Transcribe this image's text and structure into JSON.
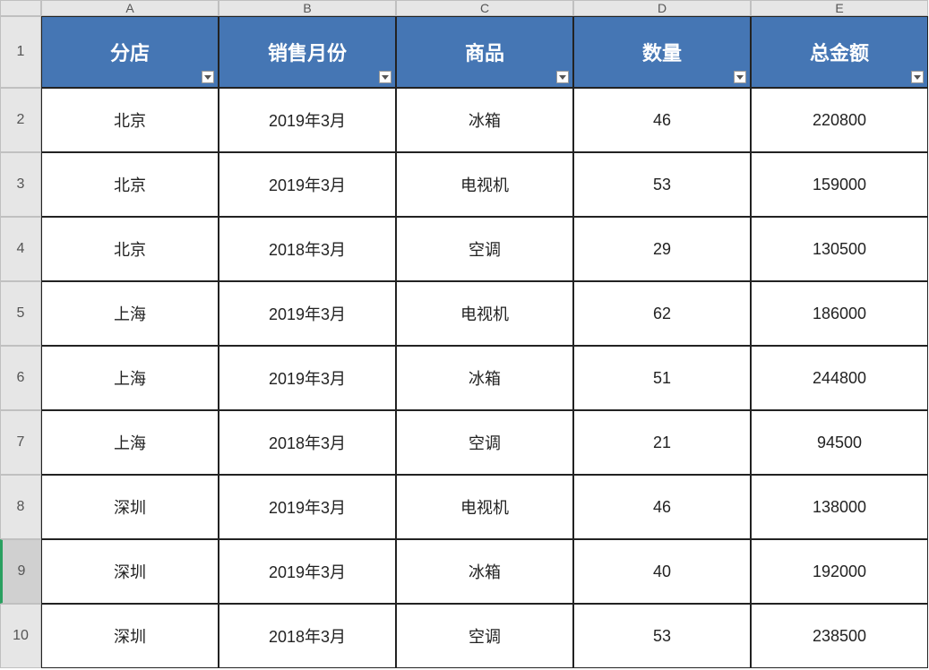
{
  "columns": [
    "A",
    "B",
    "C",
    "D",
    "E"
  ],
  "row_labels": [
    "1",
    "2",
    "3",
    "4",
    "5",
    "6",
    "7",
    "8",
    "9",
    "10"
  ],
  "headers": [
    "分店",
    "销售月份",
    "商品",
    "数量",
    "总金额"
  ],
  "selected_row_index": 9,
  "rows": [
    [
      "北京",
      "2019年3月",
      "冰箱",
      "46",
      "220800"
    ],
    [
      "北京",
      "2019年3月",
      "电视机",
      "53",
      "159000"
    ],
    [
      "北京",
      "2018年3月",
      "空调",
      "29",
      "130500"
    ],
    [
      "上海",
      "2019年3月",
      "电视机",
      "62",
      "186000"
    ],
    [
      "上海",
      "2019年3月",
      "冰箱",
      "51",
      "244800"
    ],
    [
      "上海",
      "2018年3月",
      "空调",
      "21",
      "94500"
    ],
    [
      "深圳",
      "2019年3月",
      "电视机",
      "46",
      "138000"
    ],
    [
      "深圳",
      "2019年3月",
      "冰箱",
      "40",
      "192000"
    ],
    [
      "深圳",
      "2018年3月",
      "空调",
      "53",
      "238500"
    ]
  ],
  "colors": {
    "header_bg": "#4576b4",
    "header_fg": "#ffffff",
    "row_header_bg": "#e6e6e6",
    "cell_border": "#222222",
    "selected_row_accent": "#2aa060"
  }
}
